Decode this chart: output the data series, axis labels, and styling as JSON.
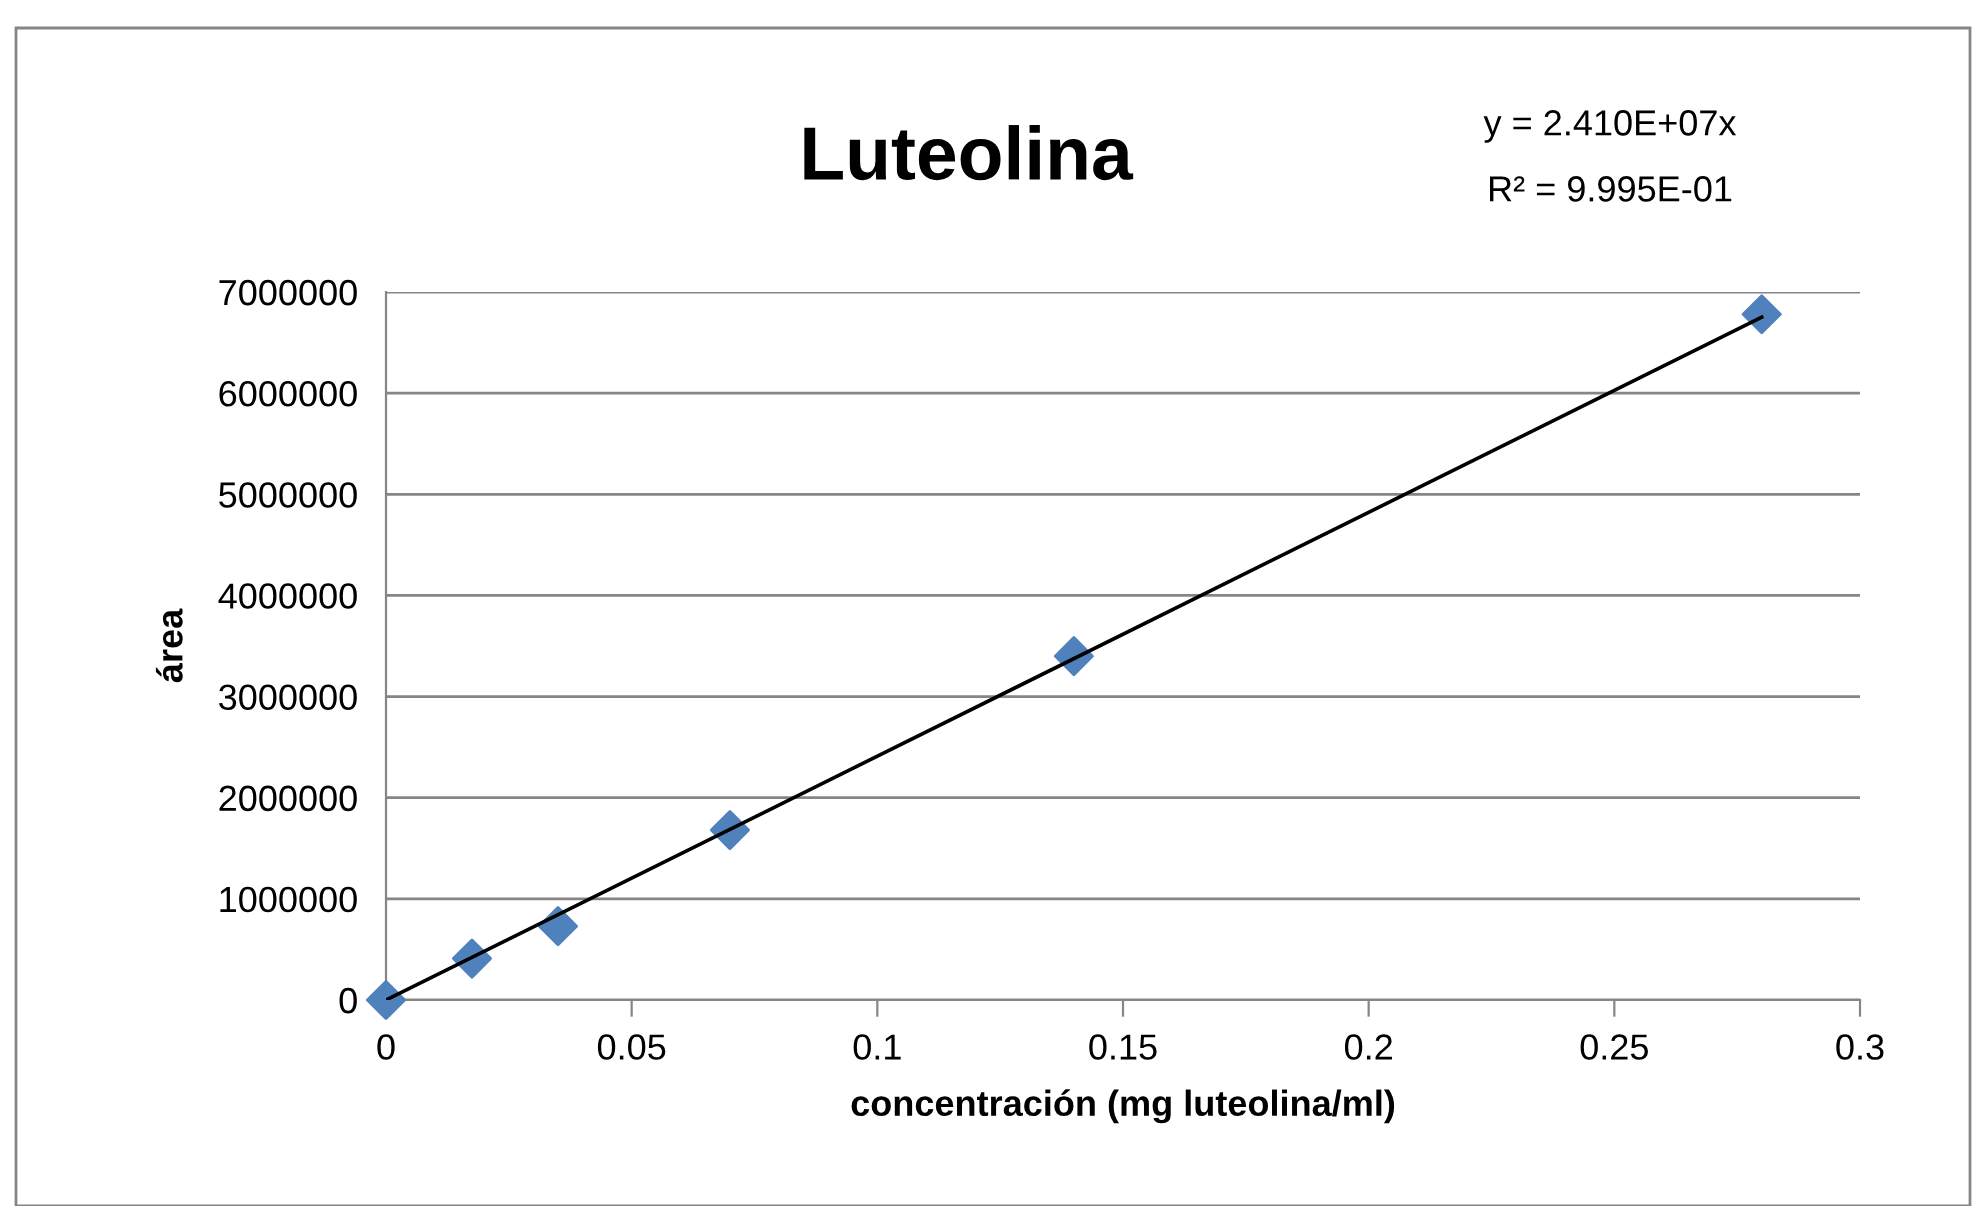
{
  "chart_data": {
    "type": "scatter",
    "title": "Luteolina",
    "xlabel": "concentración (mg luteolina/ml)",
    "ylabel": "área",
    "annotations": [
      "y = 2.410E+07x",
      "R² = 9.995E-01"
    ],
    "series": [
      {
        "color": "#4f81bd",
        "marker": "diamond",
        "x": [
          0,
          0.0175,
          0.035,
          0.07,
          0.14,
          0.28
        ],
        "values": [
          0,
          410000,
          730000,
          1680000,
          3400000,
          6780000
        ]
      },
      {
        "type": "line",
        "color": "#000000",
        "marker": "none",
        "line_style": "solid",
        "x": [
          0,
          0.28
        ],
        "values": [
          0,
          6750000
        ]
      }
    ],
    "xlim": [
      0,
      0.3
    ],
    "xticks": [
      0,
      0.05,
      0.1,
      0.15,
      0.2,
      0.25,
      0.3
    ],
    "ylim": [
      0,
      7000000
    ],
    "yticks": [
      0,
      1000000,
      2000000,
      3000000,
      4000000,
      5000000,
      6000000,
      7000000
    ],
    "grid": "y",
    "legend": false
  }
}
